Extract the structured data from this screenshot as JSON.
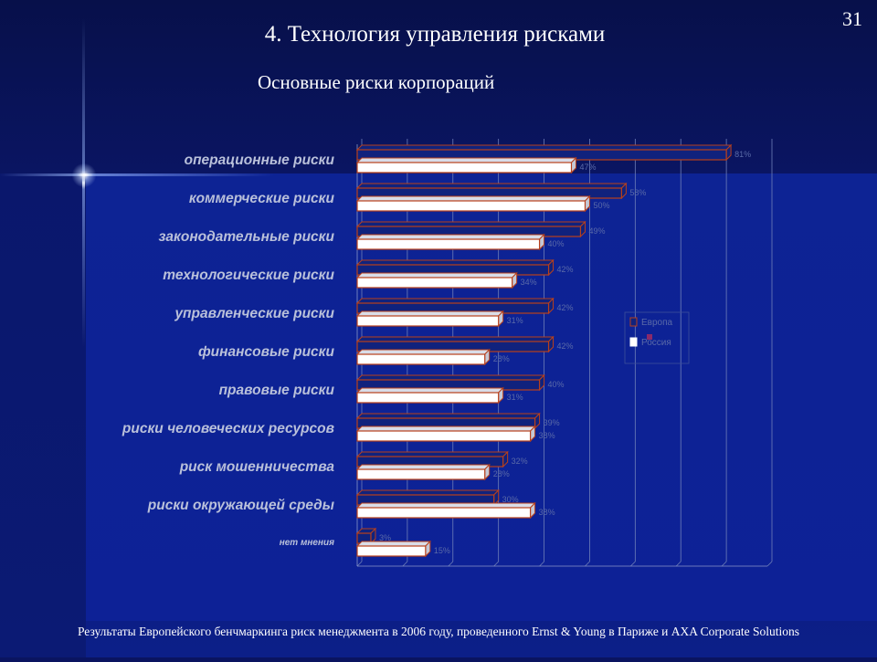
{
  "slide": {
    "number": "31",
    "title": "4. Технология управления рисками",
    "subtitle": "Основные риски корпораций",
    "footer": "Результаты Европейского бенчмаркинга риск менеджмента в 2006 году, проведенного Ernst & Young в Париже и AXA Corporate Solutions"
  },
  "chart_data": {
    "type": "bar",
    "orientation": "horizontal",
    "title": "Основные риски корпораций",
    "categories": [
      "операционные риски",
      "коммерческие риски",
      "законодательные риски",
      "технологические риски",
      "управленческие риски",
      "финансовые риски",
      "правовые риски",
      "риски человеческих ресурсов",
      "риск мошенничества",
      "риски окружающей среды",
      "нет мнения"
    ],
    "series": [
      {
        "name": "Европа",
        "values": [
          81,
          58,
          49,
          42,
          42,
          42,
          40,
          39,
          32,
          30,
          3
        ],
        "color": "#b8401c"
      },
      {
        "name": "Россия",
        "values": [
          47,
          50,
          40,
          34,
          31,
          28,
          31,
          38,
          28,
          38,
          15
        ],
        "color": "#ffffff"
      }
    ],
    "value_suffix": "%",
    "xlim": [
      0,
      90
    ],
    "grid": true,
    "legend_position": "right"
  }
}
